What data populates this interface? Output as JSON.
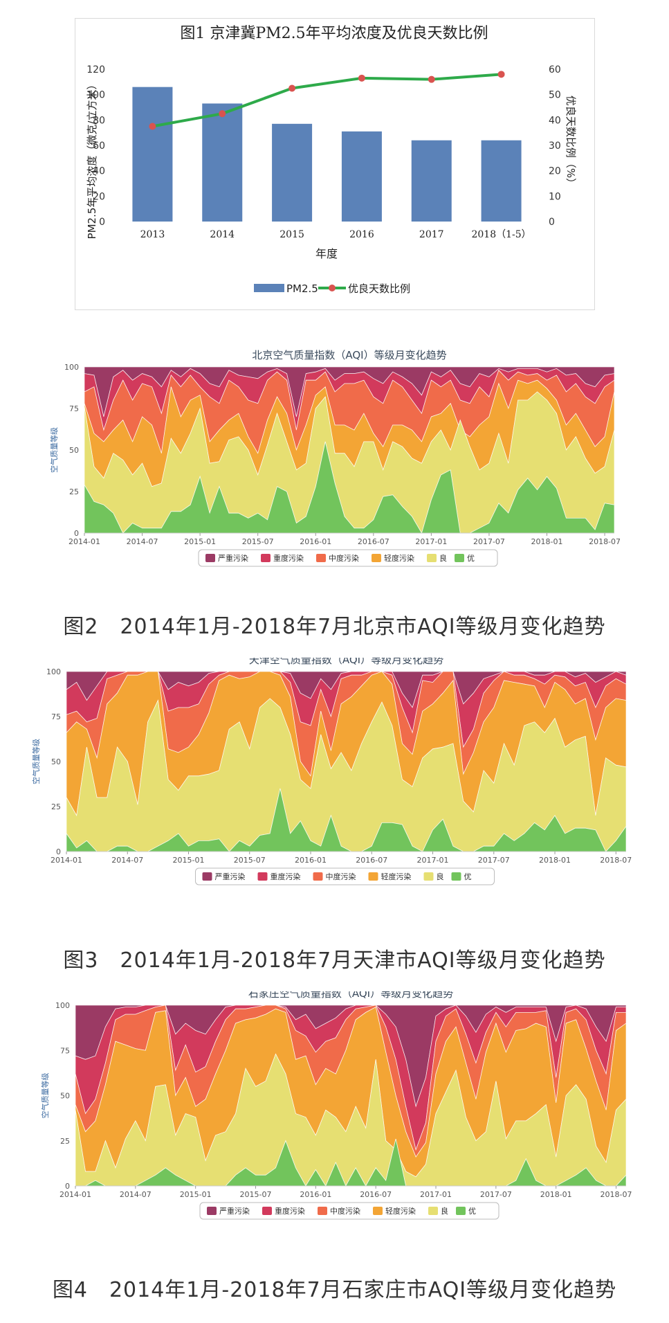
{
  "chart_data": [
    {
      "type": "bar",
      "title": "图1 京津冀PM2.5年平均浓度及优良天数比例",
      "xlabel": "年度",
      "ylabel": "PM2.5年平均浓度（微克/立方米）",
      "y2label": "优良天数比例（%）",
      "categories": [
        "2013",
        "2014",
        "2015",
        "2016",
        "2017",
        "2018（1-5）"
      ],
      "ylim": [
        0,
        120
      ],
      "y2lim": [
        0,
        60
      ],
      "yticks": [
        "0",
        "20",
        "40",
        "60",
        "80",
        "100",
        "120"
      ],
      "y2ticks": [
        "0",
        "10",
        "20",
        "30",
        "40",
        "50",
        "60"
      ],
      "legend_placement": "bottom",
      "series": [
        {
          "name": "PM2.5",
          "kind": "bar",
          "axis": "left",
          "color": "#5b82b8",
          "values": [
            106,
            93,
            77,
            71,
            64,
            64
          ]
        },
        {
          "name": "优良天数比例",
          "kind": "line",
          "axis": "right",
          "color": "#2eaa4a",
          "marker_color": "#d9534f",
          "values": [
            37.5,
            42.5,
            52.5,
            56.5,
            56,
            58
          ]
        }
      ]
    },
    {
      "type": "area",
      "stacked": true,
      "title": "北京空气质量指数（AQI）等级月变化趋势",
      "caption": "图2　2014年1月-2018年7月北京市AQI等级月变化趋势",
      "ylabel": "空气质量等级",
      "ylim": [
        0,
        100
      ],
      "yticks": [
        "0",
        "25",
        "50",
        "75",
        "100"
      ],
      "xticks": [
        "2014-01",
        "2014-07",
        "2015-01",
        "2015-07",
        "2016-01",
        "2016-07",
        "2017-01",
        "2017-07",
        "2018-01",
        "2018-07"
      ],
      "legend_placement": "bottom",
      "legend": [
        {
          "name": "严重污染",
          "color": "#9b3a64"
        },
        {
          "name": "重度污染",
          "color": "#d23a5c"
        },
        {
          "name": "中度污染",
          "color": "#f06b4a"
        },
        {
          "name": "轻度污染",
          "color": "#f3a535"
        },
        {
          "name": "良",
          "color": "#e6df72"
        },
        {
          "name": "优",
          "color": "#72c45c"
        }
      ],
      "cumulative": {
        "优": [
          29,
          19,
          17,
          12,
          0,
          6,
          3,
          3,
          3,
          13,
          13,
          17,
          34,
          12,
          28,
          12,
          12,
          9,
          12,
          8,
          28,
          25,
          6,
          10,
          28,
          55,
          30,
          10,
          3,
          3,
          8,
          22,
          23,
          16,
          10,
          0,
          20,
          35,
          38,
          0,
          0,
          3,
          6,
          18,
          12,
          26,
          33,
          26,
          34,
          27,
          9,
          9,
          9,
          2,
          18,
          17
        ],
        "良": [
          76,
          40,
          33,
          48,
          44,
          35,
          42,
          28,
          30,
          57,
          48,
          60,
          75,
          42,
          43,
          56,
          58,
          50,
          35,
          53,
          72,
          55,
          38,
          42,
          75,
          82,
          48,
          48,
          40,
          55,
          55,
          38,
          55,
          52,
          45,
          42,
          55,
          62,
          50,
          68,
          52,
          38,
          42,
          60,
          42,
          80,
          80,
          85,
          80,
          72,
          50,
          58,
          45,
          36,
          40,
          62
        ],
        "轻度": [
          78,
          60,
          55,
          62,
          68,
          55,
          70,
          65,
          48,
          88,
          70,
          80,
          83,
          55,
          62,
          68,
          72,
          58,
          48,
          68,
          82,
          72,
          50,
          65,
          83,
          88,
          65,
          65,
          62,
          72,
          60,
          52,
          65,
          65,
          62,
          55,
          70,
          72,
          78,
          62,
          58,
          65,
          70,
          90,
          75,
          92,
          90,
          92,
          87,
          80,
          65,
          72,
          62,
          52,
          58,
          85
        ],
        "中度": [
          85,
          88,
          62,
          80,
          92,
          80,
          90,
          88,
          72,
          95,
          88,
          95,
          88,
          82,
          78,
          92,
          88,
          80,
          78,
          92,
          97,
          92,
          62,
          92,
          92,
          97,
          85,
          90,
          90,
          92,
          82,
          78,
          92,
          88,
          80,
          72,
          92,
          88,
          92,
          80,
          78,
          88,
          82,
          98,
          92,
          97,
          95,
          96,
          92,
          95,
          85,
          90,
          82,
          78,
          88,
          92
        ],
        "重度": [
          96,
          95,
          70,
          94,
          98,
          92,
          96,
          94,
          88,
          98,
          94,
          99,
          96,
          90,
          88,
          98,
          95,
          94,
          93,
          97,
          99,
          96,
          70,
          96,
          97,
          99,
          92,
          96,
          96,
          97,
          93,
          90,
          97,
          94,
          90,
          83,
          97,
          94,
          98,
          90,
          88,
          96,
          94,
          99,
          97,
          99,
          99,
          99,
          97,
          99,
          95,
          96,
          90,
          88,
          95,
          96
        ]
      }
    },
    {
      "type": "area",
      "stacked": true,
      "title": "天津空气质量指数（AQI）等级月变化趋势",
      "caption": "图3　2014年1月-2018年7月天津市AQI等级月变化趋势",
      "ylabel": "空气质量等级",
      "ylim": [
        0,
        100
      ],
      "yticks": [
        "0",
        "25",
        "50",
        "75",
        "100"
      ],
      "xticks": [
        "2014-01",
        "2014-07",
        "2015-01",
        "2015-07",
        "2016-01",
        "2016-07",
        "2017-01",
        "2017-07",
        "2018-01",
        "2018-07"
      ],
      "legend_placement": "bottom",
      "legend": [
        {
          "name": "严重污染",
          "color": "#9b3a64"
        },
        {
          "name": "重度污染",
          "color": "#d23a5c"
        },
        {
          "name": "中度污染",
          "color": "#f06b4a"
        },
        {
          "name": "轻度污染",
          "color": "#f3a535"
        },
        {
          "name": "良",
          "color": "#e6df72"
        },
        {
          "name": "优",
          "color": "#72c45c"
        }
      ],
      "cumulative": {
        "优": [
          10,
          2,
          6,
          0,
          0,
          3,
          3,
          0,
          0,
          3,
          6,
          10,
          3,
          6,
          6,
          7,
          0,
          6,
          3,
          9,
          10,
          35,
          10,
          17,
          6,
          3,
          20,
          3,
          0,
          0,
          3,
          16,
          16,
          15,
          3,
          0,
          12,
          18,
          3,
          0,
          0,
          3,
          3,
          10,
          6,
          10,
          16,
          12,
          20,
          10,
          13,
          13,
          12,
          0,
          6,
          14
        ],
        "良": [
          30,
          20,
          58,
          30,
          30,
          58,
          50,
          26,
          72,
          84,
          40,
          34,
          42,
          42,
          43,
          45,
          68,
          72,
          57,
          80,
          85,
          80,
          65,
          40,
          35,
          65,
          46,
          55,
          45,
          60,
          72,
          83,
          70,
          40,
          36,
          52,
          57,
          58,
          60,
          28,
          22,
          45,
          38,
          60,
          48,
          70,
          72,
          66,
          74,
          58,
          62,
          64,
          20,
          52,
          48,
          47
        ],
        "轻度": [
          66,
          72,
          68,
          52,
          82,
          88,
          98,
          98,
          100,
          100,
          57,
          55,
          58,
          65,
          77,
          95,
          98,
          96,
          97,
          100,
          100,
          98,
          86,
          50,
          42,
          78,
          56,
          82,
          86,
          92,
          98,
          100,
          93,
          60,
          54,
          78,
          82,
          88,
          95,
          43,
          55,
          72,
          80,
          95,
          94,
          93,
          92,
          80,
          94,
          90,
          82,
          85,
          62,
          80,
          85,
          84
        ],
        "中度": [
          76,
          78,
          72,
          74,
          96,
          98,
          100,
          100,
          100,
          100,
          78,
          80,
          80,
          82,
          93,
          98,
          100,
          100,
          100,
          100,
          100,
          100,
          94,
          72,
          70,
          90,
          75,
          96,
          98,
          98,
          100,
          100,
          98,
          80,
          66,
          95,
          94,
          100,
          100,
          58,
          68,
          88,
          95,
          100,
          98,
          98,
          96,
          93,
          98,
          97,
          92,
          94,
          80,
          92,
          96,
          93
        ],
        "重度": [
          90,
          94,
          84,
          92,
          100,
          100,
          100,
          100,
          100,
          100,
          90,
          94,
          92,
          94,
          99,
          100,
          100,
          100,
          100,
          100,
          100,
          100,
          99,
          88,
          85,
          96,
          90,
          99,
          100,
          100,
          100,
          100,
          100,
          88,
          80,
          98,
          98,
          100,
          100,
          82,
          88,
          96,
          98,
          100,
          100,
          100,
          98,
          98,
          100,
          100,
          97,
          99,
          94,
          97,
          100,
          98
        ]
      }
    },
    {
      "type": "area",
      "stacked": true,
      "title": "石家庄空气质量指数（AQI）等级月变化趋势",
      "caption": "图4　2014年1月-2018年7月石家庄市AQI等级月变化趋势",
      "ylabel": "空气质量等级",
      "ylim": [
        0,
        100
      ],
      "yticks": [
        "0",
        "25",
        "50",
        "75",
        "100"
      ],
      "xticks": [
        "2014-01",
        "2014-07",
        "2015-01",
        "2015-07",
        "2016-01",
        "2016-07",
        "2017-01",
        "2017-07",
        "2018-01",
        "2018-07"
      ],
      "legend_placement": "bottom",
      "legend": [
        {
          "name": "严重污染",
          "color": "#9b3a64"
        },
        {
          "name": "重度污染",
          "color": "#d23a5c"
        },
        {
          "name": "中度污染",
          "color": "#f06b4a"
        },
        {
          "name": "轻度污染",
          "color": "#f3a535"
        },
        {
          "name": "良",
          "color": "#e6df72"
        },
        {
          "name": "优",
          "color": "#72c45c"
        }
      ],
      "cumulative": {
        "优": [
          0,
          0,
          3,
          0,
          0,
          0,
          0,
          3,
          6,
          10,
          6,
          3,
          0,
          0,
          0,
          0,
          6,
          10,
          6,
          6,
          10,
          25,
          10,
          0,
          9,
          0,
          13,
          0,
          10,
          0,
          10,
          3,
          26,
          0,
          0,
          0,
          0,
          0,
          0,
          0,
          0,
          0,
          0,
          0,
          3,
          15,
          3,
          0,
          0,
          3,
          6,
          10,
          3,
          0,
          0,
          6
        ],
        "良": [
          42,
          8,
          8,
          25,
          10,
          26,
          36,
          25,
          55,
          56,
          28,
          40,
          38,
          14,
          28,
          30,
          40,
          65,
          55,
          58,
          73,
          62,
          40,
          38,
          28,
          42,
          38,
          30,
          44,
          32,
          70,
          25,
          20,
          8,
          5,
          12,
          40,
          52,
          64,
          38,
          25,
          30,
          58,
          26,
          36,
          36,
          40,
          45,
          16,
          50,
          56,
          48,
          22,
          13,
          42,
          48
        ],
        "轻度": [
          45,
          30,
          36,
          56,
          80,
          78,
          76,
          75,
          96,
          97,
          50,
          60,
          44,
          48,
          62,
          75,
          90,
          92,
          93,
          95,
          98,
          96,
          70,
          72,
          56,
          65,
          62,
          75,
          92,
          96,
          99,
          74,
          50,
          30,
          16,
          24,
          62,
          80,
          88,
          68,
          48,
          74,
          90,
          74,
          86,
          87,
          90,
          88,
          46,
          90,
          92,
          76,
          58,
          42,
          86,
          90
        ],
        "中度": [
          62,
          40,
          48,
          68,
          92,
          95,
          95,
          97,
          99,
          100,
          64,
          78,
          63,
          66,
          80,
          92,
          98,
          98,
          99,
          100,
          100,
          98,
          86,
          83,
          74,
          80,
          82,
          92,
          98,
          99,
          100,
          88,
          70,
          44,
          20,
          35,
          80,
          94,
          98,
          84,
          68,
          85,
          96,
          88,
          96,
          96,
          96,
          97,
          60,
          96,
          98,
          92,
          75,
          62,
          96,
          96
        ],
        "重度": [
          72,
          70,
          72,
          88,
          98,
          99,
          99,
          100,
          100,
          100,
          84,
          90,
          86,
          84,
          92,
          99,
          100,
          100,
          100,
          100,
          100,
          99,
          92,
          95,
          87,
          90,
          93,
          98,
          100,
          100,
          100,
          95,
          88,
          70,
          44,
          60,
          94,
          98,
          100,
          94,
          85,
          95,
          99,
          96,
          99,
          99,
          99,
          99,
          80,
          99,
          100,
          98,
          88,
          80,
          99,
          99
        ]
      }
    }
  ]
}
